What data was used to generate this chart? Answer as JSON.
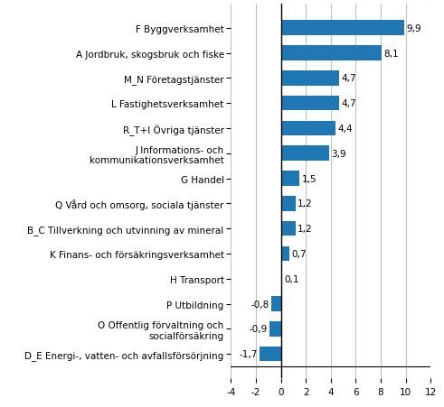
{
  "categories": [
    "D_E Energi-, vatten- och avfallsförsörjning",
    "O Offentlig förvaltning och\nsocialförsäkring",
    "P Utbildning",
    "H Transport",
    "K Finans- och försäkringsverksamhet",
    "B_C Tillverkning och utvinning av mineral",
    "Q Vård och omsorg, sociala tjänster",
    "G Handel",
    "J Informations- och\nkommunikationsverksamhet",
    "R_T+I Övriga tjänster",
    "L Fastighetsverksamhet",
    "M_N Företagstjänster",
    "A Jordbruk, skogsbruk och fiske",
    "F Byggverksamhet"
  ],
  "values": [
    -1.7,
    -0.9,
    -0.8,
    0.1,
    0.7,
    1.2,
    1.2,
    1.5,
    3.9,
    4.4,
    4.7,
    4.7,
    8.1,
    9.9
  ],
  "bar_color": "#1f77b4",
  "xlim": [
    -4,
    12
  ],
  "xticks": [
    -4,
    -2,
    0,
    2,
    4,
    6,
    8,
    10,
    12
  ],
  "grid_color": "#c0c0c0",
  "label_fontsize": 7.5,
  "value_fontsize": 7.5,
  "bar_height": 0.6
}
